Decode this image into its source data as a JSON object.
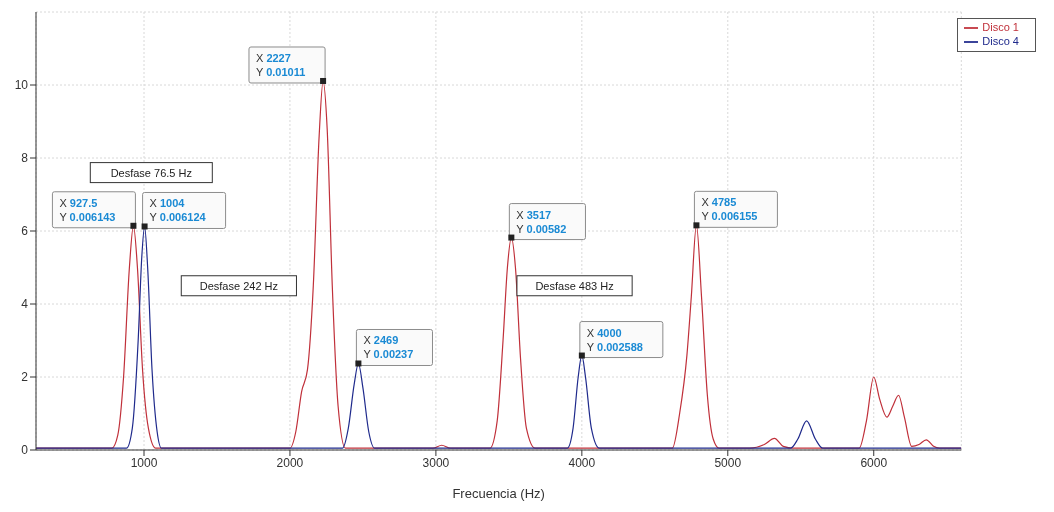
{
  "chart_data": {
    "type": "line",
    "xlabel": "Frecuencia (Hz)",
    "xlim": [
      260,
      6600
    ],
    "xticks": [
      1000,
      2000,
      3000,
      4000,
      5000,
      6000
    ],
    "ylim": [
      0,
      12
    ],
    "yticks": [
      0,
      2,
      4,
      6,
      8,
      10
    ],
    "grid": true,
    "legend": "top right",
    "series": [
      {
        "name": "Disco 1",
        "color": "#c0303a",
        "x": [
          260,
          780,
          820,
          860,
          900,
          927.5,
          955,
          990,
          1030,
          1080,
          2000,
          2040,
          2080,
          2120,
          2160,
          2200,
          2227,
          2255,
          2290,
          2330,
          2380,
          2980,
          3040,
          3100,
          3370,
          3420,
          3460,
          3490,
          3517,
          3545,
          3580,
          3620,
          3680,
          4620,
          4670,
          4720,
          4750,
          4785,
          4820,
          4860,
          4900,
          4940,
          5150,
          5250,
          5320,
          5380,
          5450,
          5900,
          5950,
          6000,
          6040,
          6090,
          6130,
          6170,
          6210,
          6260,
          6310,
          6360,
          6410,
          6450,
          6600
        ],
        "values": [
          0.05,
          0.05,
          0.4,
          2.0,
          5.0,
          6.14,
          5.0,
          2.2,
          0.6,
          0.05,
          0.05,
          0.5,
          1.6,
          2.2,
          4.5,
          8.6,
          10.1,
          8.8,
          4.5,
          1.2,
          0.05,
          0.05,
          0.13,
          0.05,
          0.05,
          0.8,
          3.0,
          5.0,
          5.82,
          5.0,
          2.5,
          0.6,
          0.05,
          0.05,
          1.0,
          2.6,
          4.2,
          6.16,
          4.2,
          1.5,
          0.3,
          0.05,
          0.05,
          0.15,
          0.32,
          0.1,
          0.05,
          0.05,
          0.8,
          2.0,
          1.4,
          0.9,
          1.2,
          1.5,
          0.9,
          0.1,
          0.15,
          0.28,
          0.1,
          0.05,
          0.05
        ]
      },
      {
        "name": "Disco 4",
        "color": "#1f2a8c",
        "x": [
          260,
          880,
          920,
          960,
          985,
          1004,
          1025,
          1055,
          1090,
          1120,
          2360,
          2400,
          2440,
          2469,
          2500,
          2540,
          2580,
          3900,
          3940,
          3975,
          4000,
          4025,
          4065,
          4120,
          5430,
          5480,
          5540,
          5600,
          5650,
          6600
        ],
        "values": [
          0.05,
          0.05,
          0.6,
          3.0,
          5.3,
          6.12,
          5.0,
          2.2,
          0.5,
          0.05,
          0.05,
          0.6,
          1.8,
          2.37,
          1.7,
          0.5,
          0.05,
          0.05,
          0.6,
          2.0,
          2.59,
          2.0,
          0.6,
          0.05,
          0.05,
          0.3,
          0.8,
          0.3,
          0.05,
          0.05
        ]
      }
    ],
    "annotations": [
      {
        "text": "X 927.5\nY 0.006143",
        "x": 927.5,
        "y": 6.143
      },
      {
        "text": "X 1004\nY 0.006124",
        "x": 1004,
        "y": 6.124
      },
      {
        "text": "X 2227\nY 0.01011",
        "x": 2227,
        "y": 10.11
      },
      {
        "text": "X 2469\nY 0.00237",
        "x": 2469,
        "y": 2.37
      },
      {
        "text": "X 3517\nY 0.00582",
        "x": 3517,
        "y": 5.82
      },
      {
        "text": "X 4000\nY 0.002588",
        "x": 4000,
        "y": 2.588
      },
      {
        "text": "X 4785\nY 0.006155",
        "x": 4785,
        "y": 6.155
      },
      "Desfase 76.5 Hz",
      "Desfase 242 Hz",
      "Desfase 483 Hz"
    ]
  }
}
